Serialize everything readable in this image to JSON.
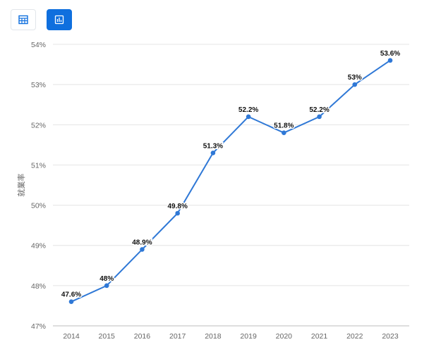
{
  "toolbar": {
    "buttons": [
      {
        "name": "table-view",
        "icon": "table-icon",
        "active": false
      },
      {
        "name": "chart-view",
        "icon": "bar-chart-icon",
        "active": true
      }
    ],
    "accent": "#0f6fde"
  },
  "chart_data": {
    "type": "line",
    "title": "",
    "xlabel": "",
    "ylabel": "就業率",
    "x": [
      "2014",
      "2015",
      "2016",
      "2017",
      "2018",
      "2019",
      "2020",
      "2021",
      "2022",
      "2023"
    ],
    "series": [
      {
        "values": [
          47.6,
          48,
          48.9,
          49.8,
          51.3,
          52.2,
          51.8,
          52.2,
          53,
          53.6
        ],
        "labels": [
          "47.6%",
          "48%",
          "48.9%",
          "49.8%",
          "51.3%",
          "52.2%",
          "51.8%",
          "52.2%",
          "53%",
          "53.6%"
        ],
        "color": "#2f78d6"
      }
    ],
    "ylim": [
      47,
      54
    ],
    "yticks": [
      "47%",
      "48%",
      "49%",
      "50%",
      "51%",
      "52%",
      "53%",
      "54%"
    ],
    "ytick_values": [
      47,
      48,
      49,
      50,
      51,
      52,
      53,
      54
    ],
    "grid": true,
    "legend": "none"
  }
}
